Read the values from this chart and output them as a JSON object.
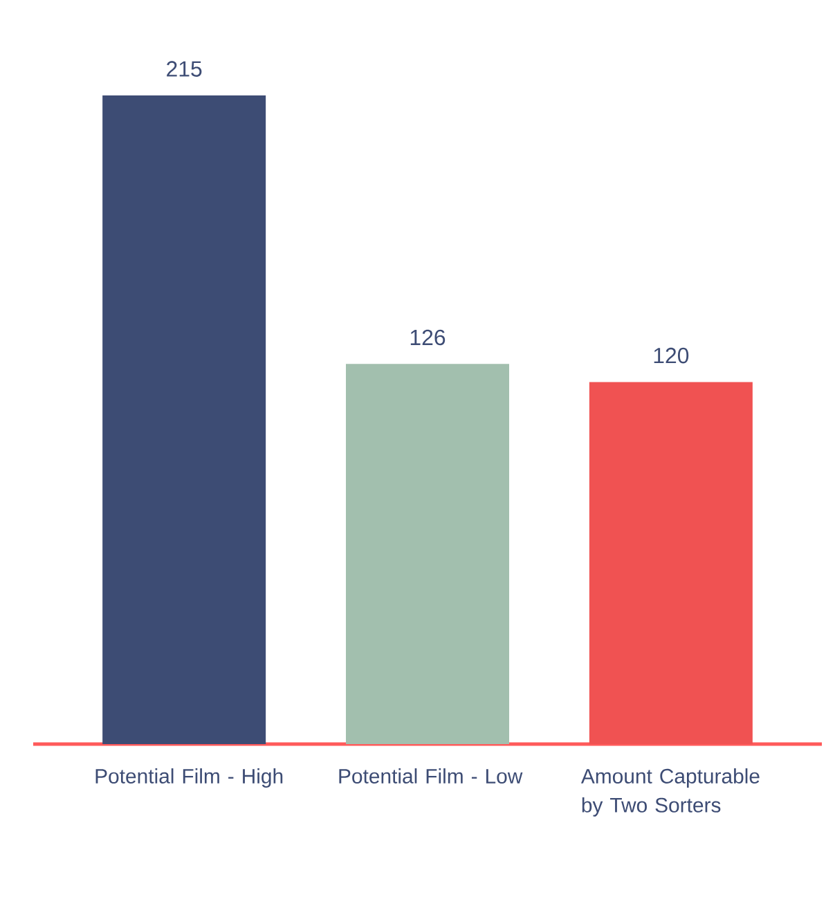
{
  "chart_data": {
    "type": "bar",
    "categories": [
      "Potential Film -  High",
      "Potential Film -  Low",
      "Amount Capturable by Two Sorters"
    ],
    "values": [
      215,
      126,
      120
    ],
    "colors": [
      "#3d4c74",
      "#a2bfae",
      "#f05252"
    ],
    "data_labels": true
  }
}
